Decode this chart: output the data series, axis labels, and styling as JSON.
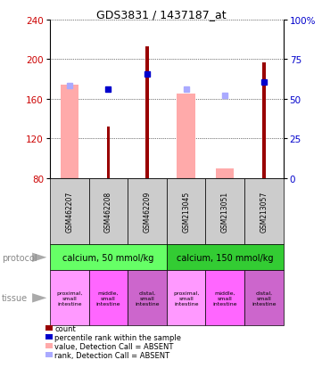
{
  "title": "GDS3831 / 1437187_at",
  "categories": [
    "GSM462207",
    "GSM462208",
    "GSM462209",
    "GSM213045",
    "GSM213051",
    "GSM213057"
  ],
  "ylim": [
    80,
    240
  ],
  "yticks_left": [
    80,
    120,
    160,
    200,
    240
  ],
  "yticks_right": [
    0,
    25,
    50,
    75,
    100
  ],
  "left_axis_color": "#cc0000",
  "right_axis_color": "#0000cc",
  "bar_absent_value": [
    174,
    0,
    0,
    165,
    90,
    0
  ],
  "bar_count": [
    0,
    132,
    213,
    0,
    0,
    197
  ],
  "dot_present_blue": [
    0,
    170,
    185,
    0,
    0,
    177
  ],
  "dot_absent_blue": [
    173,
    0,
    0,
    170,
    163,
    0
  ],
  "protocol_groups": [
    {
      "label": "calcium, 50 mmol/kg",
      "start": 0,
      "end": 3,
      "color": "#66ff66"
    },
    {
      "label": "calcium, 150 mmol/kg",
      "start": 3,
      "end": 6,
      "color": "#33cc33"
    }
  ],
  "tissue_labels": [
    {
      "label": "proximal,\nsmall\nintestine",
      "color": "#ff99ff"
    },
    {
      "label": "middle,\nsmall\nintestine",
      "color": "#ff66ff"
    },
    {
      "label": "distal,\nsmall\nintestine",
      "color": "#cc66cc"
    },
    {
      "label": "proximal,\nsmall\nintestine",
      "color": "#ff99ff"
    },
    {
      "label": "middle,\nsmall\nintestine",
      "color": "#ff66ff"
    },
    {
      "label": "distal,\nsmall\nintestine",
      "color": "#cc66cc"
    }
  ],
  "absent_bar_color": "#ffaaaa",
  "count_bar_color": "#990000",
  "absent_dot_color": "#aaaaff",
  "present_dot_color": "#0000cc",
  "bg_gray": "#cccccc",
  "legend_items": [
    {
      "color": "#990000",
      "label": "count"
    },
    {
      "color": "#0000cc",
      "label": "percentile rank within the sample"
    },
    {
      "color": "#ffaaaa",
      "label": "value, Detection Call = ABSENT"
    },
    {
      "color": "#aaaaff",
      "label": "rank, Detection Call = ABSENT"
    }
  ]
}
